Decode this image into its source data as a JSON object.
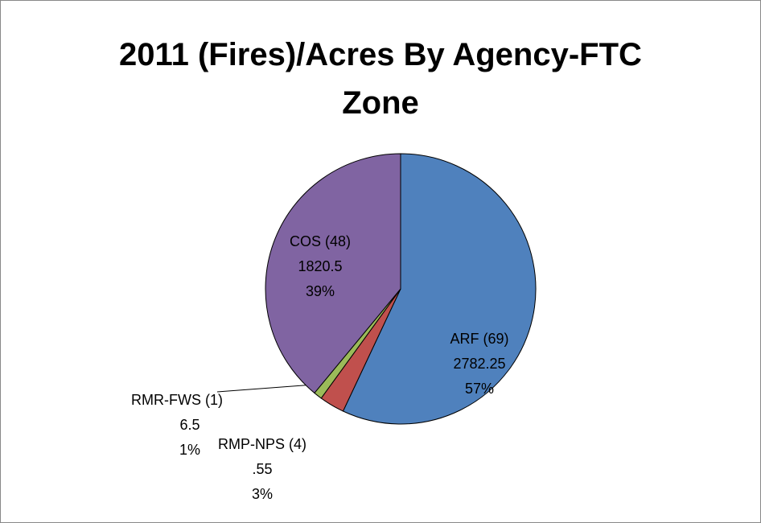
{
  "chart_data": {
    "type": "pie",
    "title": "2011 (Fires)/Acres By Agency-FTC Zone",
    "categories": [
      "ARF (69)",
      "RMP-NPS (4)",
      "RMR-FWS (1)",
      "COS (48)"
    ],
    "values": [
      57,
      3,
      1,
      39
    ],
    "value_labels": [
      "57%",
      "3%",
      "1%",
      "39%"
    ],
    "acres": {
      "values": [
        2782.25,
        0.55,
        6.5,
        1820.5
      ],
      "value_labels": [
        "2782.25",
        ".55",
        "6.5",
        "1820.5"
      ]
    },
    "colors": [
      "#4f81bd",
      "#c0504d",
      "#9bbb59",
      "#8064a2"
    ]
  }
}
